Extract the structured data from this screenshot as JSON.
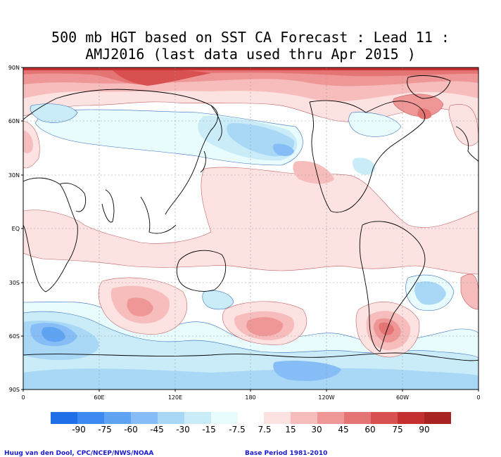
{
  "title": {
    "line1": "500 mb HGT based on SST CA Forecast : Lead 11 :",
    "line2": "AMJ2016 (last data used thru Apr 2015 )"
  },
  "axes": {
    "lat_labels": [
      "90N",
      "60N",
      "30N",
      "EQ",
      "30S",
      "60S",
      "90S"
    ],
    "lon_labels": [
      "0",
      "60E",
      "120E",
      "180",
      "120W",
      "60W",
      "0"
    ]
  },
  "colorbar": {
    "labels": [
      "-90",
      "-75",
      "-60",
      "-45",
      "-30",
      "-15",
      "-7.5",
      "7.5",
      "15",
      "30",
      "45",
      "60",
      "75",
      "90"
    ],
    "colors": [
      "#1f6fe8",
      "#3d8bf0",
      "#5fa3f3",
      "#86bdf6",
      "#a9d8f6",
      "#c9ecf8",
      "#e8fbfd",
      "#ffffff",
      "#fde2e2",
      "#f7bdbd",
      "#ef9696",
      "#e57474",
      "#d85050",
      "#c42f2f",
      "#a92323"
    ]
  },
  "credits": {
    "left": "Huug van den Dool, CPC/NCEP/NWS/NOAA",
    "right": "Base Period 1981-2010"
  },
  "palette": {
    "land": "#ffffff",
    "coast": "#000000",
    "contour": "#000000",
    "grid": "#9a9a9a"
  }
}
